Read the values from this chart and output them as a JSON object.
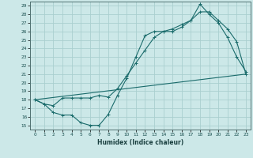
{
  "title": "",
  "xlabel": "Humidex (Indice chaleur)",
  "xlim": [
    -0.5,
    23.5
  ],
  "ylim": [
    14.5,
    29.5
  ],
  "xticks": [
    0,
    1,
    2,
    3,
    4,
    5,
    6,
    7,
    8,
    9,
    10,
    11,
    12,
    13,
    14,
    15,
    16,
    17,
    18,
    19,
    20,
    21,
    22,
    23
  ],
  "yticks": [
    15,
    16,
    17,
    18,
    19,
    20,
    21,
    22,
    23,
    24,
    25,
    26,
    27,
    28,
    29
  ],
  "bg_color": "#cce8e8",
  "grid_color": "#aacfcf",
  "line_color": "#1a6b6b",
  "line1_x": [
    0,
    1,
    2,
    3,
    4,
    5,
    6,
    7,
    8,
    9,
    10,
    11,
    12,
    13,
    14,
    15,
    16,
    17,
    18,
    19,
    20,
    21,
    22,
    23
  ],
  "line1_y": [
    18.0,
    17.5,
    16.5,
    16.2,
    16.2,
    15.3,
    15.0,
    15.0,
    16.3,
    18.5,
    20.5,
    23.0,
    25.5,
    26.0,
    26.0,
    26.0,
    26.5,
    27.3,
    29.2,
    28.0,
    27.0,
    25.3,
    23.0,
    21.3
  ],
  "line2_x": [
    0,
    1,
    2,
    3,
    4,
    5,
    6,
    7,
    8,
    9,
    10,
    11,
    12,
    13,
    14,
    15,
    16,
    17,
    18,
    19,
    20,
    21,
    22,
    23
  ],
  "line2_y": [
    18.0,
    17.5,
    17.3,
    18.2,
    18.2,
    18.2,
    18.2,
    18.5,
    18.3,
    19.3,
    20.8,
    22.3,
    23.8,
    25.3,
    26.0,
    26.3,
    26.8,
    27.3,
    28.3,
    28.3,
    27.3,
    26.3,
    24.8,
    21.0
  ],
  "line3_x": [
    0,
    23
  ],
  "line3_y": [
    18.0,
    21.0
  ]
}
